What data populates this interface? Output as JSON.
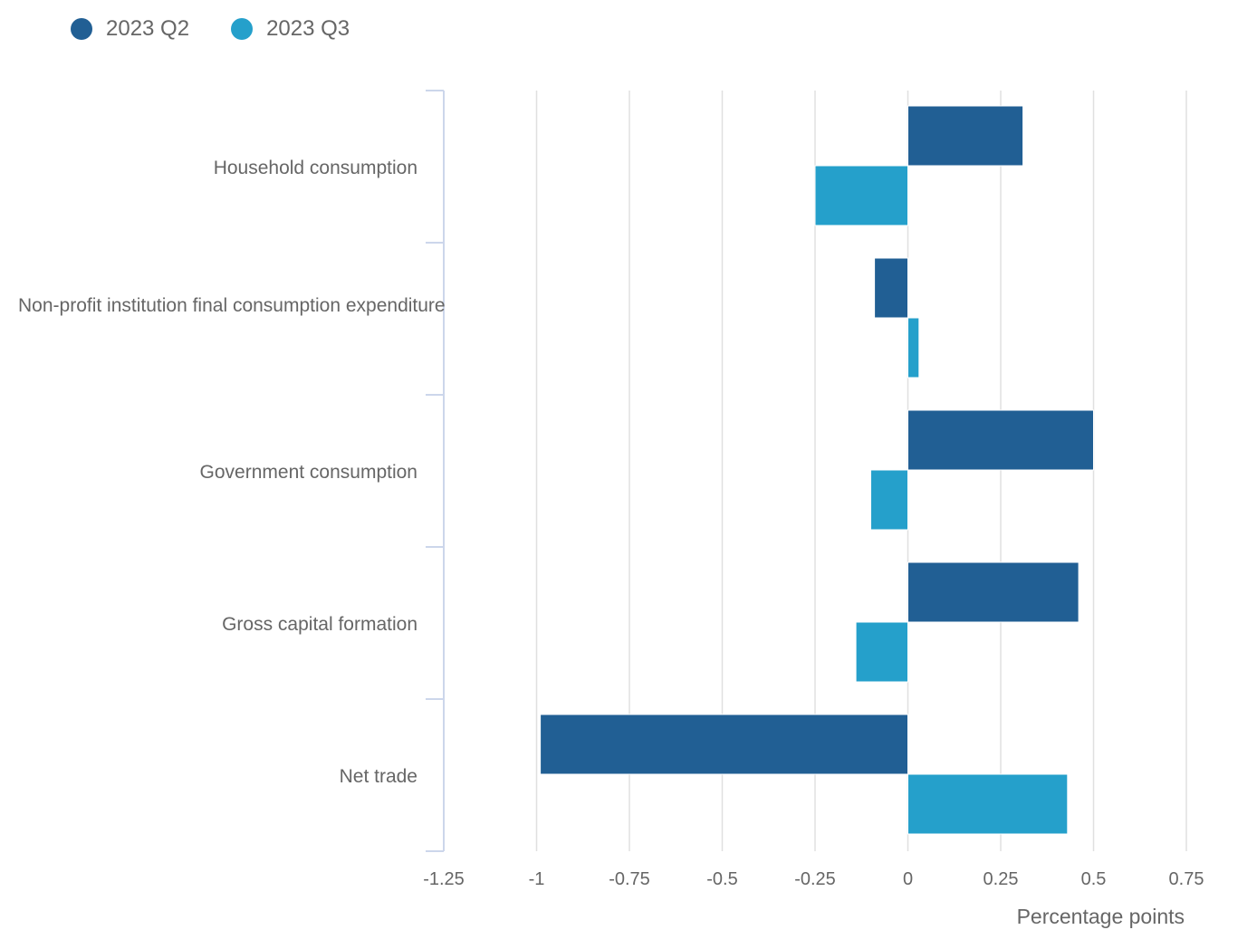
{
  "legend": [
    {
      "label": "2023 Q2",
      "color": "#215f94"
    },
    {
      "label": "2023 Q3",
      "color": "#25a0cb"
    }
  ],
  "chart_data": {
    "type": "bar",
    "orientation": "horizontal",
    "categories": [
      "Household consumption",
      "Non-profit institution final consumption expenditure",
      "Government consumption",
      "Gross capital formation",
      "Net trade"
    ],
    "series": [
      {
        "name": "2023 Q2",
        "color": "#215f94",
        "values": [
          0.31,
          -0.09,
          0.5,
          0.46,
          -0.99
        ]
      },
      {
        "name": "2023 Q3",
        "color": "#25a0cb",
        "values": [
          -0.25,
          0.03,
          -0.1,
          -0.14,
          0.43
        ]
      }
    ],
    "xlabel": "Percentage points",
    "ylabel": "",
    "xlim": [
      -1.25,
      0.75
    ],
    "xticks": [
      -1.25,
      -1,
      -0.75,
      -0.5,
      -0.25,
      0,
      0.25,
      0.5,
      0.75
    ],
    "xtick_labels": [
      "-1.25",
      "-1",
      "-0.75",
      "-0.5",
      "-0.25",
      "0",
      "0.25",
      "0.5",
      "0.75"
    ],
    "grid": true,
    "legend_position": "top-left"
  }
}
